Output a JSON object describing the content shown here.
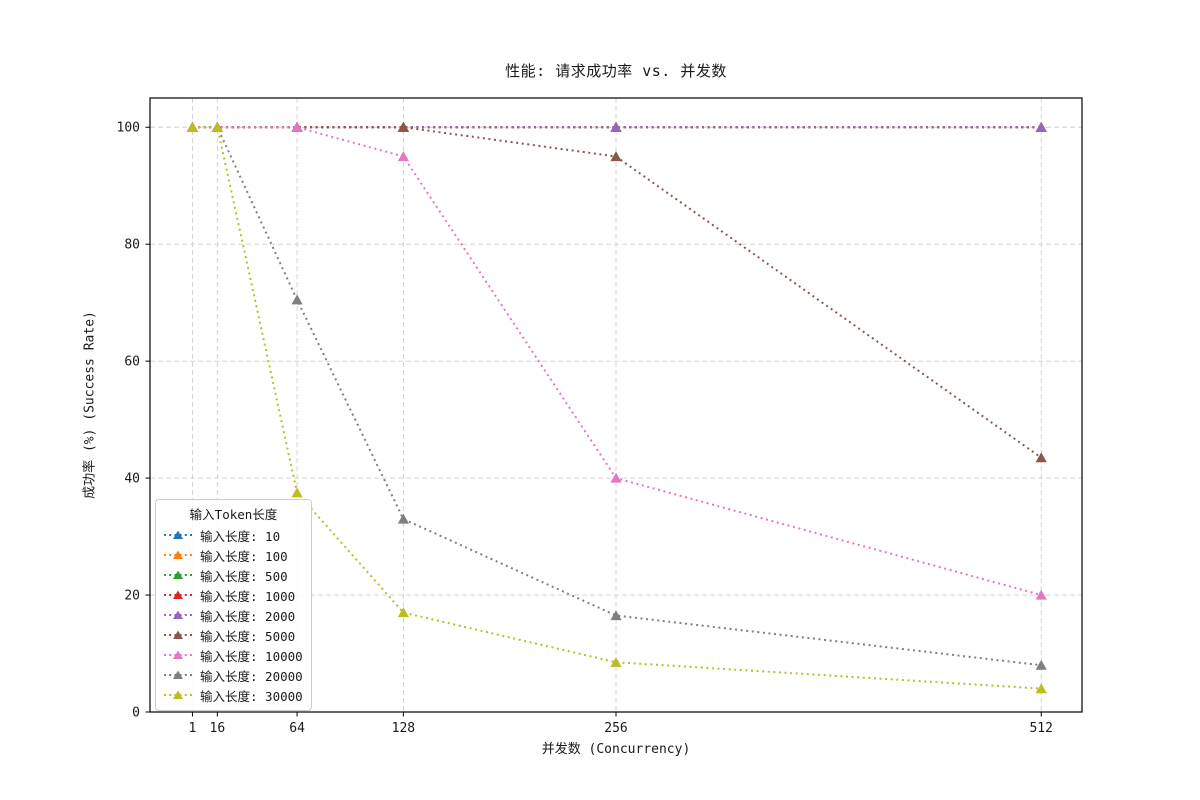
{
  "figure": {
    "title": "性能: 请求成功率 vs. 并发数",
    "xlabel": "并发数 (Concurrency)",
    "ylabel": "成功率 (%) (Success Rate)"
  },
  "chart_data": {
    "type": "line",
    "title": "性能: 请求成功率 vs. 并发数",
    "xlabel": "并发数 (Concurrency)",
    "ylabel": "成功率 (%) (Success Rate)",
    "x": [
      1,
      16,
      64,
      128,
      256,
      512
    ],
    "x_tick_labels": [
      "1",
      "16",
      "64",
      "128",
      "256",
      "512"
    ],
    "y_ticks": [
      0,
      20,
      40,
      60,
      80,
      100
    ],
    "y_tick_labels": [
      "0",
      "20",
      "40",
      "60",
      "80",
      "100"
    ],
    "xlim": [
      -24.55,
      536.55
    ],
    "ylim": [
      0,
      105
    ],
    "grid": true,
    "grid_color": "#cfcfcf",
    "line_style": "dotted",
    "marker": "triangle-up",
    "frame_color": "#000000",
    "legend": {
      "title": "输入Token长度",
      "position": "lower-left"
    },
    "series": [
      {
        "name": "输入长度: 10",
        "color": "#1f77b4",
        "values": [
          100,
          100,
          100,
          100,
          100,
          100
        ]
      },
      {
        "name": "输入长度: 100",
        "color": "#ff7f0e",
        "values": [
          100,
          100,
          100,
          100,
          100,
          100
        ]
      },
      {
        "name": "输入长度: 500",
        "color": "#2ca02c",
        "values": [
          100,
          100,
          100,
          100,
          100,
          100
        ]
      },
      {
        "name": "输入长度: 1000",
        "color": "#d62728",
        "values": [
          100,
          100,
          100,
          100,
          100,
          100
        ]
      },
      {
        "name": "输入长度: 2000",
        "color": "#9467bd",
        "values": [
          100,
          100,
          100,
          100,
          100,
          100
        ]
      },
      {
        "name": "输入长度: 5000",
        "color": "#8c564b",
        "values": [
          100,
          100,
          100,
          100,
          95,
          43.5
        ]
      },
      {
        "name": "输入长度: 10000",
        "color": "#e377c2",
        "values": [
          100,
          100,
          100,
          95,
          40,
          20
        ]
      },
      {
        "name": "输入长度: 20000",
        "color": "#7f7f7f",
        "values": [
          100,
          100,
          70.5,
          33,
          16.5,
          8
        ]
      },
      {
        "name": "输入长度: 30000",
        "color": "#bcbd22",
        "values": [
          100,
          100,
          37.5,
          17,
          8.5,
          4
        ]
      }
    ]
  }
}
